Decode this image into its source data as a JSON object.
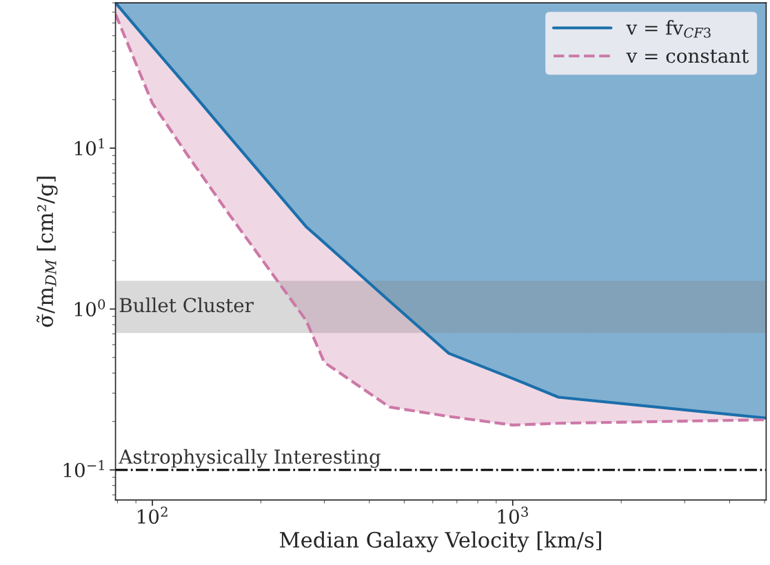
{
  "chart_data": {
    "type": "line",
    "xlabel": "Median Galaxy Velocity [km/s]",
    "ylabel": "σ̃/m$_{DM}$ [cm²/g]",
    "log": "xy",
    "xlim": [
      79,
      5050
    ],
    "ylim": [
      0.065,
      80
    ],
    "xticks": [
      {
        "value": 100,
        "label": "10$^{2}$"
      },
      {
        "value": 1000,
        "label": "10$^{3}$"
      }
    ],
    "yticks": [
      {
        "value": 0.1,
        "label": "10$^{−1}$"
      },
      {
        "value": 1,
        "label": "10$^{0}$"
      },
      {
        "value": 10,
        "label": "10$^{1}$"
      }
    ],
    "x": [
      79,
      100,
      125,
      163,
      267,
      300,
      455,
      665,
      1000,
      1340,
      5050
    ],
    "series": [
      {
        "name": "v = fv$_{CF3}$",
        "color": "#1b6fab",
        "line_style": "solid",
        "values": [
          80,
          43,
          24,
          11.9,
          3.25,
          2.58,
          1.12,
          0.53,
          0.37,
          0.283,
          0.21
        ],
        "lower": [
          80,
          43,
          24,
          11.9,
          3.25,
          2.58,
          1.12,
          0.53,
          0.37,
          0.283,
          0.21
        ],
        "upper": [
          80,
          80,
          80,
          80,
          80,
          80,
          80,
          80,
          80,
          80,
          80
        ]
      },
      {
        "name": "v = constant",
        "color": "#cc79a7",
        "line_style": "dashed",
        "values": [
          68,
          19,
          9.1,
          3.9,
          0.85,
          0.466,
          0.246,
          0.215,
          0.19,
          0.195,
          0.205
        ],
        "lower": [
          68,
          19,
          9.1,
          3.9,
          0.85,
          0.466,
          0.246,
          0.215,
          0.19,
          0.195,
          0.205
        ],
        "upper": [
          80,
          43,
          24,
          11.9,
          3.25,
          2.58,
          1.12,
          0.53,
          0.37,
          0.283,
          0.21
        ]
      }
    ],
    "bands": [
      {
        "axis": "y",
        "from": 0.71,
        "to": 1.5,
        "label": "Bullet Cluster",
        "color": "#808080"
      }
    ],
    "ref_lines": [
      {
        "axis": "y",
        "value": 0.1,
        "label": "Astrophysically Interesting",
        "color": "#000000",
        "line_style": "dashdot"
      }
    ],
    "legend": "top right",
    "grid": false
  }
}
